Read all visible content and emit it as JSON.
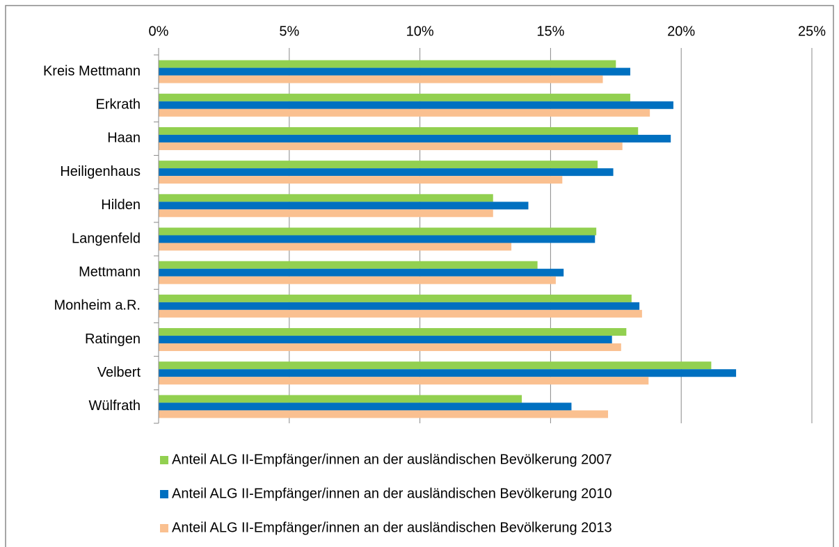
{
  "chart_data": {
    "type": "bar",
    "orientation": "horizontal",
    "categories": [
      "Kreis Mettmann",
      "Erkrath",
      "Haan",
      "Heiligenhaus",
      "Hilden",
      "Langenfeld",
      "Mettmann",
      "Monheim a.R.",
      "Ratingen",
      "Velbert",
      "Wülfrath"
    ],
    "series": [
      {
        "name": "Anteil ALG II-Empfänger/innen an der ausländischen Bevölkerung 2007",
        "color": "#92d050",
        "values": [
          17.5,
          18.05,
          18.35,
          16.8,
          12.8,
          16.75,
          14.5,
          18.1,
          17.9,
          21.15,
          13.9
        ]
      },
      {
        "name": "Anteil ALG II-Empfänger/innen an der ausländischen Bevölkerung 2010",
        "color": "#0070c0",
        "values": [
          18.05,
          19.7,
          19.6,
          17.4,
          14.15,
          16.7,
          15.5,
          18.4,
          17.35,
          22.1,
          15.8
        ]
      },
      {
        "name": "Anteil ALG II-Empfänger/innen an der ausländischen Bevölkerung 2013",
        "color": "#fac090",
        "values": [
          17.0,
          18.8,
          17.75,
          15.45,
          12.8,
          13.5,
          15.2,
          18.5,
          17.7,
          18.75,
          17.2
        ]
      }
    ],
    "xlim": [
      0,
      25
    ],
    "xticks": [
      {
        "value": 0,
        "label": "0%"
      },
      {
        "value": 5,
        "label": "5%"
      },
      {
        "value": 10,
        "label": "10%"
      },
      {
        "value": 15,
        "label": "15%"
      },
      {
        "value": 20,
        "label": "20%"
      },
      {
        "value": 25,
        "label": "25%"
      }
    ],
    "grid": true,
    "legend": "bottom"
  }
}
